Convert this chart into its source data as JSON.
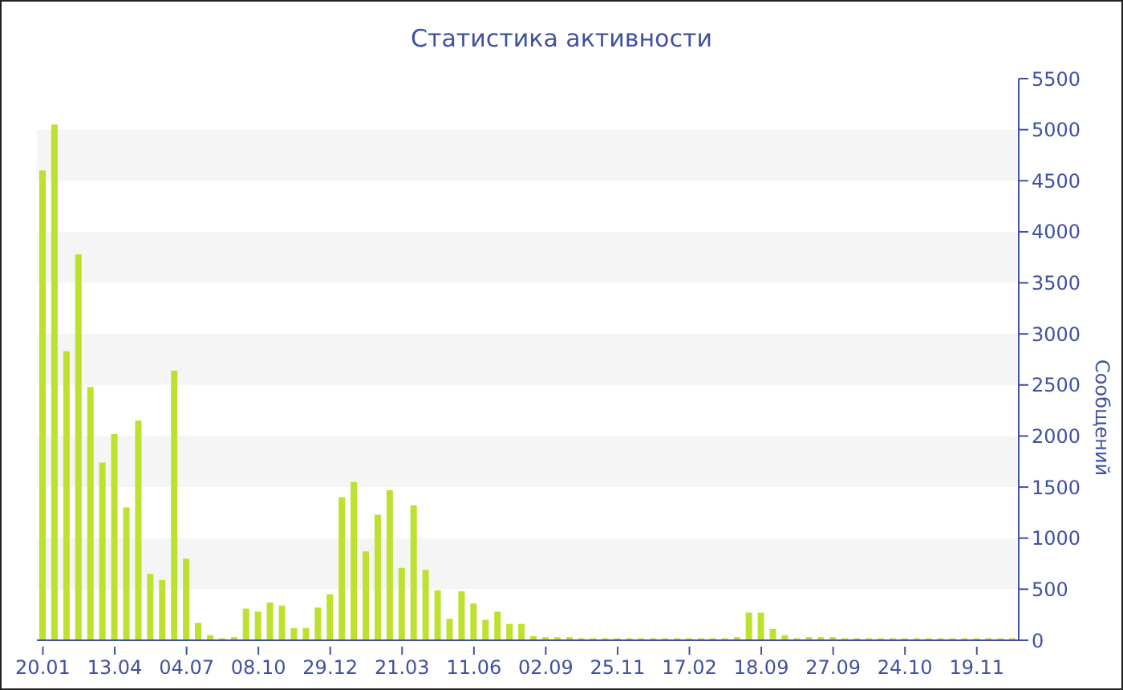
{
  "chart_data": {
    "type": "bar",
    "title": "Статистика активности",
    "ylabel": "Сообщений",
    "categories": [
      "20.01",
      null,
      null,
      null,
      null,
      null,
      "13.04",
      null,
      null,
      null,
      null,
      null,
      "04.07",
      null,
      null,
      null,
      null,
      null,
      "08.10",
      null,
      null,
      null,
      null,
      null,
      "29.12",
      null,
      null,
      null,
      null,
      null,
      "21.03",
      null,
      null,
      null,
      null,
      null,
      "11.06",
      null,
      null,
      null,
      null,
      null,
      "02.09",
      null,
      null,
      null,
      null,
      null,
      "25.11",
      null,
      null,
      null,
      null,
      null,
      "17.02",
      null,
      null,
      null,
      null,
      null,
      "18.09",
      null,
      null,
      null,
      null,
      null,
      "27.09",
      null,
      null,
      null,
      null,
      null,
      "24.10",
      null,
      null,
      null,
      null,
      null,
      "19.11",
      null,
      null,
      null
    ],
    "series": [
      {
        "color": "#bde12f",
        "values": [
          4600,
          5050,
          2830,
          3780,
          2480,
          1740,
          2020,
          1300,
          2150,
          650,
          590,
          2640,
          800,
          170,
          50,
          20,
          30,
          310,
          280,
          370,
          340,
          120,
          120,
          320,
          450,
          1400,
          1550,
          870,
          1230,
          1470,
          710,
          1320,
          690,
          490,
          210,
          480,
          360,
          200,
          280,
          160,
          160,
          40,
          30,
          30,
          30,
          20,
          20,
          20,
          20,
          20,
          20,
          20,
          20,
          20,
          20,
          20,
          20,
          20,
          30,
          270,
          270,
          110,
          50,
          20,
          30,
          30,
          30,
          20,
          20,
          20,
          20,
          20,
          20,
          20,
          20,
          20,
          20,
          20,
          20,
          20,
          20,
          20
        ]
      }
    ],
    "ylim": [
      0,
      5500
    ],
    "yticks": [
      0,
      500,
      1000,
      1500,
      2000,
      2500,
      3000,
      3500,
      4000,
      4500,
      5000,
      5500
    ],
    "grid": false
  }
}
